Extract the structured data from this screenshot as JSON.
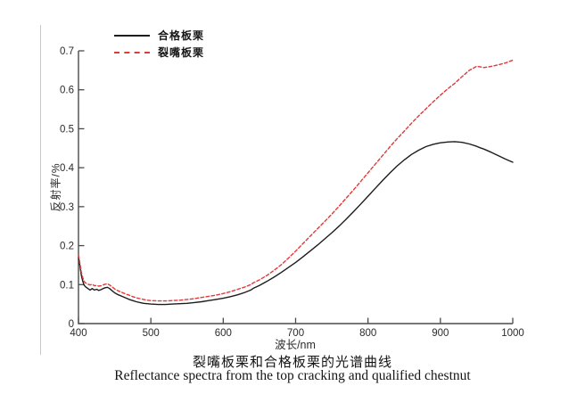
{
  "chart_data": {
    "type": "line",
    "caption_cn": "裂嘴板栗和合格板栗的光谱曲线",
    "caption_en": "Reflectance spectra from the top cracking and qualified chestnut",
    "xlabel": "波长/nm",
    "ylabel": "反射率/%",
    "xlim": [
      400,
      1000
    ],
    "ylim": [
      0,
      0.7
    ],
    "x_ticks": [
      400,
      500,
      600,
      700,
      800,
      900,
      1000
    ],
    "x_tick_labels": [
      "400",
      "500",
      "600",
      "700",
      "800",
      "900",
      "1000"
    ],
    "y_ticks": [
      0,
      0.1,
      0.2,
      0.3,
      0.4,
      0.5,
      0.6,
      0.7
    ],
    "y_tick_labels": [
      "0",
      "0.1",
      "0.2",
      "0.3",
      "0.4",
      "0.5",
      "0.6",
      "0.7"
    ],
    "grid": false,
    "legend_position": "top-left",
    "axis_color": "#4a4a4a",
    "x": [
      400,
      402,
      404,
      406,
      408,
      410,
      413,
      416,
      419,
      422,
      425,
      428,
      431,
      434,
      437,
      440,
      443,
      446,
      450,
      455,
      460,
      465,
      470,
      475,
      480,
      485,
      490,
      495,
      500,
      510,
      520,
      530,
      540,
      550,
      560,
      570,
      580,
      590,
      600,
      610,
      620,
      630,
      638,
      642,
      650,
      660,
      670,
      680,
      690,
      700,
      710,
      720,
      730,
      740,
      750,
      760,
      770,
      780,
      790,
      800,
      810,
      820,
      830,
      840,
      850,
      860,
      870,
      880,
      890,
      900,
      910,
      920,
      930,
      940,
      950,
      955,
      960,
      970,
      980,
      990,
      1000
    ],
    "series": [
      {
        "name": "合格板栗",
        "color": "#1c1c1c",
        "line_style": "solid",
        "values": [
          0.17,
          0.148,
          0.124,
          0.108,
          0.098,
          0.094,
          0.09,
          0.086,
          0.09,
          0.086,
          0.088,
          0.085,
          0.087,
          0.09,
          0.092,
          0.093,
          0.09,
          0.085,
          0.079,
          0.074,
          0.07,
          0.066,
          0.062,
          0.059,
          0.056,
          0.054,
          0.052,
          0.051,
          0.05,
          0.049,
          0.049,
          0.05,
          0.051,
          0.052,
          0.054,
          0.056,
          0.059,
          0.062,
          0.065,
          0.069,
          0.074,
          0.08,
          0.086,
          0.091,
          0.098,
          0.108,
          0.119,
          0.131,
          0.144,
          0.157,
          0.171,
          0.186,
          0.201,
          0.217,
          0.233,
          0.25,
          0.268,
          0.287,
          0.307,
          0.327,
          0.347,
          0.367,
          0.386,
          0.404,
          0.42,
          0.434,
          0.445,
          0.454,
          0.46,
          0.464,
          0.466,
          0.467,
          0.465,
          0.461,
          0.455,
          0.451,
          0.448,
          0.44,
          0.431,
          0.422,
          0.414
        ]
      },
      {
        "name": "裂嘴板栗",
        "color": "#e03a3a",
        "line_style": "dashed",
        "values": [
          0.176,
          0.155,
          0.132,
          0.117,
          0.108,
          0.104,
          0.101,
          0.099,
          0.101,
          0.097,
          0.098,
          0.096,
          0.097,
          0.099,
          0.101,
          0.102,
          0.099,
          0.095,
          0.089,
          0.084,
          0.08,
          0.076,
          0.073,
          0.069,
          0.066,
          0.064,
          0.062,
          0.06,
          0.059,
          0.058,
          0.058,
          0.059,
          0.06,
          0.062,
          0.064,
          0.067,
          0.07,
          0.073,
          0.077,
          0.082,
          0.088,
          0.094,
          0.1,
          0.105,
          0.112,
          0.123,
          0.136,
          0.151,
          0.168,
          0.186,
          0.205,
          0.224,
          0.243,
          0.262,
          0.281,
          0.301,
          0.322,
          0.343,
          0.365,
          0.387,
          0.409,
          0.431,
          0.453,
          0.474,
          0.494,
          0.514,
          0.533,
          0.551,
          0.569,
          0.586,
          0.602,
          0.617,
          0.634,
          0.65,
          0.66,
          0.659,
          0.657,
          0.66,
          0.664,
          0.669,
          0.676
        ]
      }
    ]
  }
}
